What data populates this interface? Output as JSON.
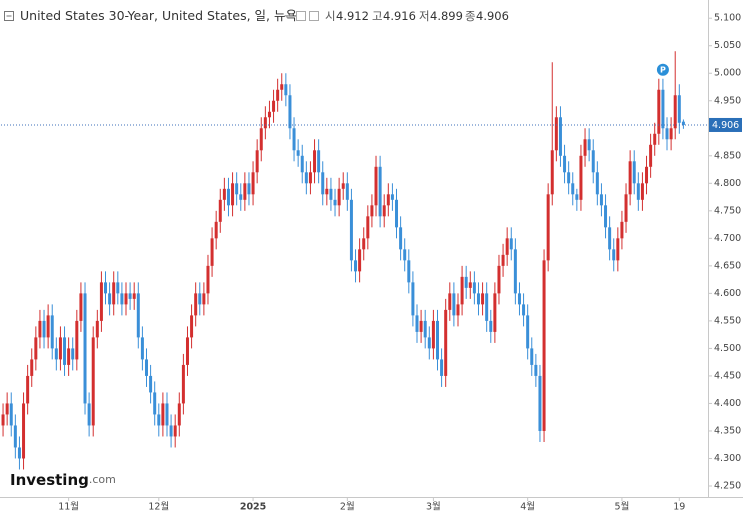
{
  "chart_data": {
    "type": "candlestick",
    "title": "United States 30-Year, United States, 일, 뉴욕",
    "header_labels": [
      "시",
      "고",
      "저",
      "종"
    ],
    "logo": [
      "Investing",
      ".com"
    ],
    "annotation": "P",
    "up_color": "#d32f2f",
    "down_color": "#3a8fd8",
    "xlim": [
      -0.5,
      172
    ],
    "ylim": [
      4.23,
      5.124
    ],
    "xticks": [
      {
        "value": 16,
        "label": "11월"
      },
      {
        "value": 38,
        "label": "12월"
      },
      {
        "value": 61,
        "label": "2025"
      },
      {
        "value": 84,
        "label": "2월"
      },
      {
        "value": 105,
        "label": "3월"
      },
      {
        "value": 128,
        "label": "4월"
      },
      {
        "value": 151,
        "label": "5월"
      },
      {
        "value": 165,
        "label": "19"
      }
    ],
    "yticks": [
      {
        "value": 4.25,
        "label": "4.250"
      },
      {
        "value": 4.3,
        "label": "4.300"
      },
      {
        "value": 4.35,
        "label": "4.350"
      },
      {
        "value": 4.4,
        "label": "4.400"
      },
      {
        "value": 4.45,
        "label": "4.450"
      },
      {
        "value": 4.5,
        "label": "4.500"
      },
      {
        "value": 4.55,
        "label": "4.550"
      },
      {
        "value": 4.6,
        "label": "4.600"
      },
      {
        "value": 4.65,
        "label": "4.650"
      },
      {
        "value": 4.7,
        "label": "4.700"
      },
      {
        "value": 4.75,
        "label": "4.750"
      },
      {
        "value": 4.8,
        "label": "4.800"
      },
      {
        "value": 4.85,
        "label": "4.850"
      },
      {
        "value": 4.9,
        "label": "4.900"
      },
      {
        "value": 4.95,
        "label": "4.950"
      },
      {
        "value": 5,
        "label": "5.000"
      },
      {
        "value": 5.05,
        "label": "5.050"
      },
      {
        "value": 5.1,
        "label": "5.100"
      }
    ],
    "open": [
      4.36,
      4.38,
      4.4,
      4.36,
      4.32,
      4.3,
      4.4,
      4.45,
      4.48,
      4.52,
      4.55,
      4.52,
      4.56,
      4.5,
      4.48,
      4.52,
      4.47,
      4.5,
      4.48,
      4.55,
      4.6,
      4.4,
      4.36,
      4.52,
      4.55,
      4.62,
      4.6,
      4.58,
      4.62,
      4.6,
      4.58,
      4.6,
      4.59,
      4.6,
      4.52,
      4.48,
      4.45,
      4.42,
      4.38,
      4.36,
      4.4,
      4.36,
      4.34,
      4.36,
      4.4,
      4.47,
      4.52,
      4.56,
      4.6,
      4.58,
      4.6,
      4.65,
      4.7,
      4.73,
      4.77,
      4.79,
      4.76,
      4.8,
      4.78,
      4.77,
      4.8,
      4.78,
      4.82,
      4.86,
      4.9,
      4.92,
      4.93,
      4.95,
      4.97,
      4.98,
      4.96,
      4.9,
      4.86,
      4.85,
      4.82,
      4.8,
      4.82,
      4.86,
      4.82,
      4.78,
      4.79,
      4.77,
      4.76,
      4.79,
      4.8,
      4.77,
      4.66,
      4.64,
      4.68,
      4.7,
      4.74,
      4.76,
      4.83,
      4.74,
      4.76,
      4.78,
      4.77,
      4.72,
      4.68,
      4.66,
      4.62,
      4.56,
      4.53,
      4.55,
      4.52,
      4.5,
      4.55,
      4.48,
      4.45,
      4.57,
      4.6,
      4.56,
      4.58,
      4.63,
      4.61,
      4.62,
      4.6,
      4.58,
      4.6,
      4.55,
      4.53,
      4.6,
      4.65,
      4.67,
      4.7,
      4.68,
      4.6,
      4.58,
      4.56,
      4.5,
      4.47,
      4.45,
      4.35,
      4.66,
      4.78,
      4.86,
      4.92,
      4.85,
      4.82,
      4.8,
      4.78,
      4.77,
      4.85,
      4.88,
      4.86,
      4.82,
      4.78,
      4.76,
      4.72,
      4.68,
      4.66,
      4.7,
      4.73,
      4.78,
      4.84,
      4.8,
      4.77,
      4.8,
      4.83,
      4.87,
      4.89,
      4.97,
      4.9,
      4.88,
      4.9,
      4.96,
      4.912
    ],
    "high": [
      4.4,
      4.42,
      4.42,
      4.38,
      4.34,
      4.42,
      4.47,
      4.5,
      4.54,
      4.57,
      4.57,
      4.58,
      4.58,
      4.52,
      4.54,
      4.54,
      4.52,
      4.52,
      4.57,
      4.62,
      4.62,
      4.42,
      4.54,
      4.57,
      4.64,
      4.64,
      4.62,
      4.64,
      4.64,
      4.62,
      4.62,
      4.62,
      4.62,
      4.62,
      4.54,
      4.5,
      4.47,
      4.44,
      4.4,
      4.42,
      4.42,
      4.38,
      4.38,
      4.42,
      4.49,
      4.54,
      4.58,
      4.62,
      4.62,
      4.62,
      4.67,
      4.72,
      4.75,
      4.79,
      4.81,
      4.81,
      4.82,
      4.82,
      4.8,
      4.82,
      4.82,
      4.84,
      4.88,
      4.92,
      4.94,
      4.95,
      4.97,
      4.99,
      5.0,
      5.0,
      4.98,
      4.92,
      4.88,
      4.87,
      4.84,
      4.84,
      4.88,
      4.88,
      4.84,
      4.81,
      4.81,
      4.79,
      4.81,
      4.82,
      4.82,
      4.79,
      4.68,
      4.7,
      4.72,
      4.76,
      4.78,
      4.85,
      4.85,
      4.78,
      4.8,
      4.8,
      4.79,
      4.74,
      4.7,
      4.68,
      4.64,
      4.58,
      4.57,
      4.57,
      4.54,
      4.57,
      4.57,
      4.5,
      4.59,
      4.62,
      4.62,
      4.6,
      4.65,
      4.65,
      4.64,
      4.64,
      4.62,
      4.62,
      4.62,
      4.57,
      4.62,
      4.67,
      4.69,
      4.72,
      4.72,
      4.7,
      4.62,
      4.6,
      4.58,
      4.52,
      4.49,
      4.47,
      4.68,
      4.8,
      5.02,
      4.94,
      4.94,
      4.87,
      4.84,
      4.82,
      4.79,
      4.87,
      4.9,
      4.9,
      4.88,
      4.84,
      4.8,
      4.78,
      4.74,
      4.7,
      4.72,
      4.75,
      4.8,
      4.86,
      4.86,
      4.82,
      4.82,
      4.85,
      4.89,
      4.91,
      4.99,
      4.99,
      4.92,
      4.92,
      5.04,
      4.98,
      4.916
    ],
    "low": [
      4.34,
      4.36,
      4.34,
      4.3,
      4.28,
      4.28,
      4.38,
      4.43,
      4.46,
      4.5,
      4.5,
      4.5,
      4.48,
      4.46,
      4.46,
      4.45,
      4.45,
      4.46,
      4.46,
      4.53,
      4.38,
      4.34,
      4.34,
      4.5,
      4.53,
      4.58,
      4.56,
      4.56,
      4.58,
      4.56,
      4.56,
      4.57,
      4.57,
      4.5,
      4.46,
      4.43,
      4.4,
      4.36,
      4.34,
      4.34,
      4.34,
      4.32,
      4.32,
      4.34,
      4.38,
      4.45,
      4.5,
      4.54,
      4.56,
      4.56,
      4.58,
      4.63,
      4.68,
      4.71,
      4.75,
      4.74,
      4.74,
      4.76,
      4.75,
      4.75,
      4.76,
      4.76,
      4.8,
      4.84,
      4.88,
      4.9,
      4.91,
      4.93,
      4.95,
      4.94,
      4.88,
      4.84,
      4.83,
      4.8,
      4.78,
      4.78,
      4.8,
      4.8,
      4.76,
      4.76,
      4.75,
      4.74,
      4.74,
      4.77,
      4.75,
      4.64,
      4.62,
      4.62,
      4.66,
      4.68,
      4.72,
      4.74,
      4.72,
      4.72,
      4.74,
      4.75,
      4.7,
      4.66,
      4.64,
      4.6,
      4.54,
      4.51,
      4.51,
      4.5,
      4.48,
      4.48,
      4.46,
      4.43,
      4.43,
      4.55,
      4.54,
      4.54,
      4.56,
      4.59,
      4.59,
      4.58,
      4.56,
      4.56,
      4.53,
      4.51,
      4.51,
      4.58,
      4.63,
      4.65,
      4.66,
      4.58,
      4.56,
      4.54,
      4.48,
      4.45,
      4.43,
      4.33,
      4.33,
      4.64,
      4.76,
      4.84,
      4.83,
      4.8,
      4.78,
      4.76,
      4.75,
      4.75,
      4.83,
      4.84,
      4.8,
      4.76,
      4.74,
      4.7,
      4.66,
      4.64,
      4.64,
      4.68,
      4.71,
      4.76,
      4.78,
      4.75,
      4.75,
      4.78,
      4.81,
      4.85,
      4.87,
      4.88,
      4.86,
      4.86,
      4.88,
      4.89,
      4.899
    ],
    "close": [
      4.38,
      4.4,
      4.36,
      4.32,
      4.3,
      4.4,
      4.45,
      4.48,
      4.52,
      4.55,
      4.52,
      4.56,
      4.5,
      4.48,
      4.52,
      4.47,
      4.5,
      4.48,
      4.55,
      4.6,
      4.4,
      4.36,
      4.52,
      4.55,
      4.62,
      4.6,
      4.58,
      4.62,
      4.6,
      4.58,
      4.6,
      4.59,
      4.6,
      4.52,
      4.48,
      4.45,
      4.42,
      4.38,
      4.36,
      4.4,
      4.36,
      4.34,
      4.36,
      4.4,
      4.47,
      4.52,
      4.56,
      4.6,
      4.58,
      4.6,
      4.65,
      4.7,
      4.73,
      4.77,
      4.79,
      4.76,
      4.8,
      4.78,
      4.77,
      4.8,
      4.78,
      4.82,
      4.86,
      4.9,
      4.92,
      4.93,
      4.95,
      4.97,
      4.98,
      4.96,
      4.9,
      4.86,
      4.85,
      4.82,
      4.8,
      4.82,
      4.86,
      4.82,
      4.78,
      4.79,
      4.77,
      4.76,
      4.79,
      4.8,
      4.77,
      4.66,
      4.64,
      4.68,
      4.7,
      4.74,
      4.76,
      4.83,
      4.74,
      4.76,
      4.78,
      4.77,
      4.72,
      4.68,
      4.66,
      4.62,
      4.56,
      4.53,
      4.55,
      4.52,
      4.5,
      4.55,
      4.48,
      4.45,
      4.57,
      4.6,
      4.56,
      4.58,
      4.63,
      4.61,
      4.62,
      4.6,
      4.58,
      4.6,
      4.55,
      4.53,
      4.6,
      4.65,
      4.67,
      4.7,
      4.68,
      4.6,
      4.58,
      4.56,
      4.5,
      4.47,
      4.45,
      4.35,
      4.66,
      4.78,
      4.86,
      4.92,
      4.85,
      4.82,
      4.8,
      4.78,
      4.77,
      4.85,
      4.88,
      4.86,
      4.82,
      4.78,
      4.76,
      4.72,
      4.68,
      4.66,
      4.7,
      4.73,
      4.78,
      4.84,
      4.8,
      4.77,
      4.8,
      4.83,
      4.87,
      4.89,
      4.97,
      4.9,
      4.88,
      4.9,
      4.96,
      4.91,
      4.906
    ]
  }
}
